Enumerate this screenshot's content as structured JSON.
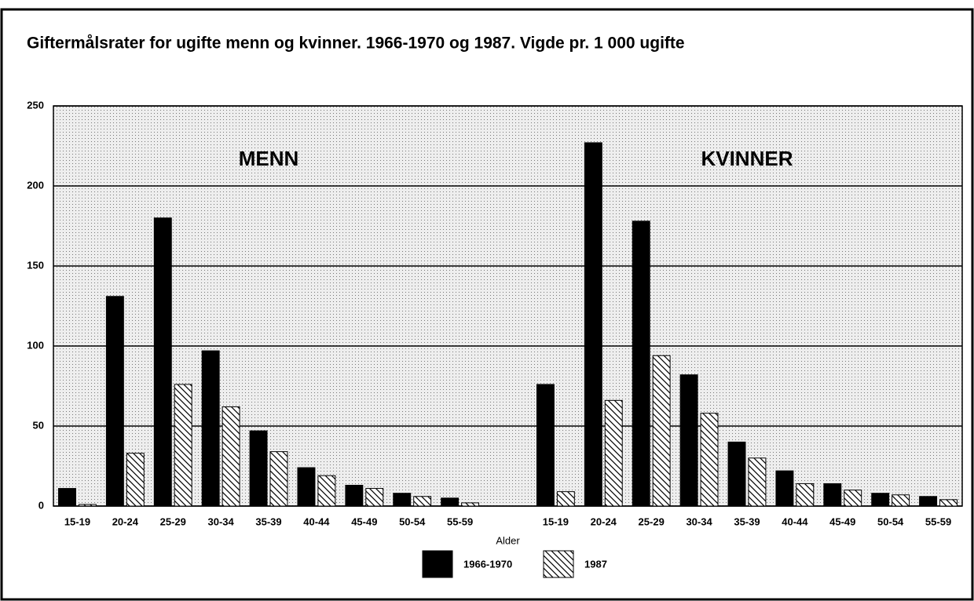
{
  "chart_data": {
    "type": "bar",
    "title": "Giftermålsrater for ugifte menn og kvinner. 1966-1970 og 1987. Vigde pr. 1 000 ugifte",
    "x_label": "Alder",
    "annotations": [
      "MENN",
      "KVINNER"
    ],
    "categories": [
      "15-19",
      "20-24",
      "25-29",
      "30-34",
      "35-39",
      "40-44",
      "45-49",
      "50-54",
      "55-59",
      null,
      "15-19",
      "20-24",
      "25-29",
      "30-34",
      "35-39",
      "40-44",
      "45-49",
      "50-54",
      "55-59"
    ],
    "series": [
      {
        "name": "1966-1970",
        "color": "#000000",
        "values": [
          11,
          131,
          180,
          97,
          47,
          24,
          13,
          8,
          5,
          null,
          76,
          227,
          178,
          82,
          40,
          22,
          14,
          8,
          6
        ]
      },
      {
        "name": "1987",
        "color": "hatch",
        "values": [
          1,
          33,
          76,
          62,
          34,
          19,
          11,
          6,
          2,
          null,
          9,
          66,
          94,
          58,
          30,
          14,
          10,
          7,
          4
        ]
      }
    ],
    "ylim": [
      0,
      250
    ],
    "yticks": [
      0,
      50,
      100,
      150,
      200,
      250
    ],
    "grid": true,
    "legend": "bottom"
  }
}
